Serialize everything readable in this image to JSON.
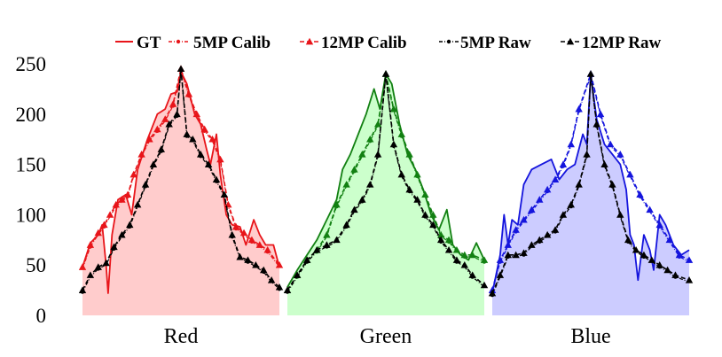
{
  "chart_data": {
    "type": "line",
    "title": "",
    "xlabel": "",
    "ylabel": "",
    "ylim": [
      0,
      250
    ],
    "yticks": [
      0,
      50,
      100,
      150,
      200,
      250
    ],
    "grid": false,
    "legend_position": "top",
    "legend": [
      {
        "name": "GT",
        "style": "solid"
      },
      {
        "name": "5MP Calib",
        "style": "dashdot"
      },
      {
        "name": "12MP Calib",
        "style": "dashed-triangle"
      },
      {
        "name": "5MP Raw",
        "style": "dashdot"
      },
      {
        "name": "12MP Raw",
        "style": "dashed-triangle"
      }
    ],
    "panels": [
      {
        "name": "Red",
        "color": "#e8151a",
        "fill": "#ffcccc",
        "gt": [
          [
            0,
            48
          ],
          [
            0.04,
            72
          ],
          [
            0.08,
            80
          ],
          [
            0.1,
            90
          ],
          [
            0.12,
            50
          ],
          [
            0.13,
            22
          ],
          [
            0.15,
            80
          ],
          [
            0.18,
            115
          ],
          [
            0.22,
            120
          ],
          [
            0.25,
            100
          ],
          [
            0.28,
            145
          ],
          [
            0.33,
            175
          ],
          [
            0.38,
            200
          ],
          [
            0.42,
            205
          ],
          [
            0.45,
            220
          ],
          [
            0.48,
            222
          ],
          [
            0.5,
            242
          ],
          [
            0.53,
            230
          ],
          [
            0.57,
            200
          ],
          [
            0.6,
            190
          ],
          [
            0.63,
            165
          ],
          [
            0.65,
            150
          ],
          [
            0.68,
            180
          ],
          [
            0.7,
            140
          ],
          [
            0.73,
            100
          ],
          [
            0.76,
            90
          ],
          [
            0.8,
            88
          ],
          [
            0.83,
            70
          ],
          [
            0.87,
            95
          ],
          [
            0.9,
            80
          ],
          [
            0.93,
            70
          ],
          [
            0.97,
            70
          ],
          [
            1,
            48
          ]
        ],
        "calib": [
          [
            0,
            48
          ],
          [
            0.04,
            70
          ],
          [
            0.08,
            82
          ],
          [
            0.11,
            90
          ],
          [
            0.14,
            100
          ],
          [
            0.17,
            110
          ],
          [
            0.2,
            115
          ],
          [
            0.23,
            120
          ],
          [
            0.26,
            140
          ],
          [
            0.3,
            160
          ],
          [
            0.34,
            175
          ],
          [
            0.38,
            185
          ],
          [
            0.42,
            195
          ],
          [
            0.46,
            210
          ],
          [
            0.5,
            245
          ],
          [
            0.54,
            220
          ],
          [
            0.58,
            200
          ],
          [
            0.62,
            185
          ],
          [
            0.66,
            175
          ],
          [
            0.7,
            155
          ],
          [
            0.74,
            110
          ],
          [
            0.78,
            88
          ],
          [
            0.82,
            82
          ],
          [
            0.86,
            75
          ],
          [
            0.9,
            70
          ],
          [
            0.94,
            65
          ],
          [
            1,
            50
          ]
        ],
        "raw": [
          [
            0,
            25
          ],
          [
            0.04,
            40
          ],
          [
            0.08,
            48
          ],
          [
            0.12,
            52
          ],
          [
            0.16,
            68
          ],
          [
            0.2,
            80
          ],
          [
            0.24,
            90
          ],
          [
            0.28,
            110
          ],
          [
            0.32,
            130
          ],
          [
            0.36,
            150
          ],
          [
            0.4,
            165
          ],
          [
            0.44,
            190
          ],
          [
            0.48,
            200
          ],
          [
            0.5,
            245
          ],
          [
            0.53,
            180
          ],
          [
            0.56,
            175
          ],
          [
            0.6,
            160
          ],
          [
            0.64,
            150
          ],
          [
            0.68,
            135
          ],
          [
            0.72,
            120
          ],
          [
            0.76,
            80
          ],
          [
            0.8,
            58
          ],
          [
            0.84,
            55
          ],
          [
            0.88,
            50
          ],
          [
            0.92,
            45
          ],
          [
            0.96,
            35
          ],
          [
            1,
            28
          ]
        ]
      },
      {
        "name": "Green",
        "color": "#128012",
        "fill": "#ccffcc",
        "gt": [
          [
            0,
            28
          ],
          [
            0.05,
            45
          ],
          [
            0.1,
            60
          ],
          [
            0.15,
            75
          ],
          [
            0.2,
            95
          ],
          [
            0.25,
            115
          ],
          [
            0.28,
            145
          ],
          [
            0.32,
            160
          ],
          [
            0.36,
            180
          ],
          [
            0.4,
            200
          ],
          [
            0.44,
            225
          ],
          [
            0.47,
            205
          ],
          [
            0.5,
            240
          ],
          [
            0.53,
            230
          ],
          [
            0.57,
            190
          ],
          [
            0.61,
            160
          ],
          [
            0.65,
            145
          ],
          [
            0.69,
            125
          ],
          [
            0.73,
            100
          ],
          [
            0.77,
            85
          ],
          [
            0.81,
            105
          ],
          [
            0.84,
            70
          ],
          [
            0.88,
            60
          ],
          [
            0.92,
            55
          ],
          [
            0.96,
            72
          ],
          [
            1,
            55
          ]
        ],
        "calib": [
          [
            0,
            25
          ],
          [
            0.05,
            40
          ],
          [
            0.1,
            55
          ],
          [
            0.15,
            65
          ],
          [
            0.2,
            80
          ],
          [
            0.25,
            110
          ],
          [
            0.3,
            130
          ],
          [
            0.34,
            145
          ],
          [
            0.38,
            160
          ],
          [
            0.42,
            175
          ],
          [
            0.46,
            190
          ],
          [
            0.5,
            240
          ],
          [
            0.54,
            205
          ],
          [
            0.58,
            180
          ],
          [
            0.62,
            160
          ],
          [
            0.66,
            140
          ],
          [
            0.7,
            120
          ],
          [
            0.74,
            100
          ],
          [
            0.78,
            80
          ],
          [
            0.82,
            75
          ],
          [
            0.86,
            65
          ],
          [
            0.9,
            60
          ],
          [
            0.94,
            60
          ],
          [
            1,
            55
          ]
        ],
        "raw": [
          [
            0,
            25
          ],
          [
            0.05,
            40
          ],
          [
            0.1,
            55
          ],
          [
            0.15,
            65
          ],
          [
            0.2,
            70
          ],
          [
            0.25,
            75
          ],
          [
            0.3,
            90
          ],
          [
            0.34,
            105
          ],
          [
            0.38,
            115
          ],
          [
            0.42,
            130
          ],
          [
            0.46,
            160
          ],
          [
            0.5,
            240
          ],
          [
            0.54,
            170
          ],
          [
            0.58,
            140
          ],
          [
            0.62,
            125
          ],
          [
            0.66,
            115
          ],
          [
            0.7,
            100
          ],
          [
            0.74,
            90
          ],
          [
            0.78,
            75
          ],
          [
            0.82,
            65
          ],
          [
            0.86,
            55
          ],
          [
            0.9,
            50
          ],
          [
            0.94,
            40
          ],
          [
            1,
            30
          ]
        ]
      },
      {
        "name": "Blue",
        "color": "#1515dd",
        "fill": "#ccccff",
        "gt": [
          [
            0,
            22
          ],
          [
            0.04,
            60
          ],
          [
            0.06,
            100
          ],
          [
            0.08,
            70
          ],
          [
            0.1,
            95
          ],
          [
            0.13,
            90
          ],
          [
            0.16,
            130
          ],
          [
            0.2,
            145
          ],
          [
            0.25,
            150
          ],
          [
            0.3,
            155
          ],
          [
            0.34,
            135
          ],
          [
            0.38,
            145
          ],
          [
            0.42,
            150
          ],
          [
            0.46,
            180
          ],
          [
            0.48,
            170
          ],
          [
            0.5,
            240
          ],
          [
            0.53,
            195
          ],
          [
            0.57,
            170
          ],
          [
            0.61,
            160
          ],
          [
            0.65,
            150
          ],
          [
            0.68,
            125
          ],
          [
            0.7,
            80
          ],
          [
            0.72,
            70
          ],
          [
            0.74,
            35
          ],
          [
            0.77,
            80
          ],
          [
            0.8,
            65
          ],
          [
            0.82,
            45
          ],
          [
            0.85,
            100
          ],
          [
            0.88,
            90
          ],
          [
            0.92,
            70
          ],
          [
            0.96,
            60
          ],
          [
            1,
            65
          ]
        ],
        "calib": [
          [
            0,
            25
          ],
          [
            0.04,
            55
          ],
          [
            0.08,
            70
          ],
          [
            0.12,
            85
          ],
          [
            0.16,
            95
          ],
          [
            0.2,
            105
          ],
          [
            0.24,
            115
          ],
          [
            0.28,
            125
          ],
          [
            0.32,
            135
          ],
          [
            0.36,
            150
          ],
          [
            0.4,
            170
          ],
          [
            0.44,
            205
          ],
          [
            0.5,
            240
          ],
          [
            0.55,
            200
          ],
          [
            0.6,
            170
          ],
          [
            0.65,
            160
          ],
          [
            0.7,
            140
          ],
          [
            0.75,
            120
          ],
          [
            0.8,
            105
          ],
          [
            0.85,
            90
          ],
          [
            0.9,
            75
          ],
          [
            0.95,
            60
          ],
          [
            1,
            55
          ]
        ],
        "raw": [
          [
            0,
            22
          ],
          [
            0.04,
            40
          ],
          [
            0.08,
            60
          ],
          [
            0.12,
            60
          ],
          [
            0.16,
            62
          ],
          [
            0.2,
            70
          ],
          [
            0.24,
            75
          ],
          [
            0.28,
            80
          ],
          [
            0.32,
            85
          ],
          [
            0.36,
            100
          ],
          [
            0.4,
            110
          ],
          [
            0.44,
            130
          ],
          [
            0.48,
            160
          ],
          [
            0.5,
            240
          ],
          [
            0.53,
            190
          ],
          [
            0.57,
            150
          ],
          [
            0.61,
            130
          ],
          [
            0.65,
            100
          ],
          [
            0.69,
            75
          ],
          [
            0.73,
            65
          ],
          [
            0.77,
            60
          ],
          [
            0.81,
            55
          ],
          [
            0.85,
            50
          ],
          [
            0.89,
            45
          ],
          [
            0.93,
            40
          ],
          [
            1,
            35
          ]
        ]
      }
    ]
  }
}
